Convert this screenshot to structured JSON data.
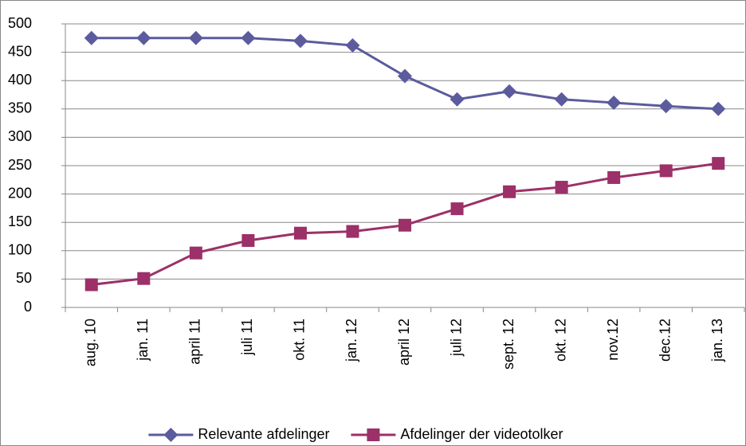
{
  "chart_data": {
    "type": "line",
    "categories": [
      "aug. 10",
      "jan. 11",
      "april 11",
      "juli 11",
      "okt. 11",
      "jan. 12",
      "april 12",
      "juli 12",
      "sept. 12",
      "okt. 12",
      "nov.12",
      "dec.12",
      "jan. 13"
    ],
    "series": [
      {
        "name": "Relevante afdelinger",
        "color": "#5b5b9d",
        "marker": "diamond",
        "values": [
          475,
          475,
          475,
          475,
          470,
          462,
          408,
          367,
          381,
          367,
          361,
          355,
          350
        ]
      },
      {
        "name": "Afdelinger der videotolker",
        "color": "#9c3068",
        "marker": "square",
        "values": [
          40,
          51,
          96,
          118,
          131,
          134,
          145,
          174,
          204,
          212,
          229,
          241,
          254
        ]
      }
    ],
    "ylim": [
      0,
      500
    ],
    "yticks": [
      0,
      50,
      100,
      150,
      200,
      250,
      300,
      350,
      400,
      450,
      500
    ],
    "grid": true,
    "legend": "bottom"
  }
}
